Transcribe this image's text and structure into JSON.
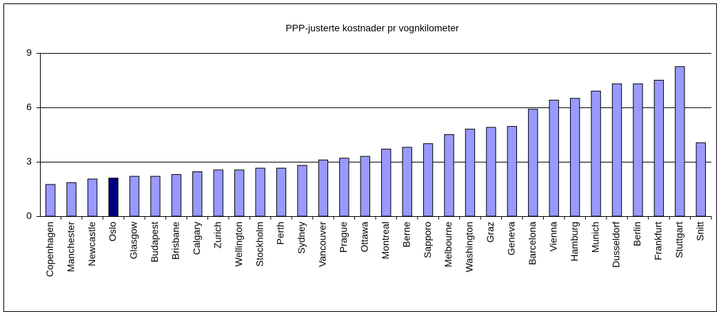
{
  "chart_data": {
    "type": "bar",
    "title": "PPP-justerte kostnader pr vognkilometer",
    "categories": [
      "Copenhagen",
      "Manchester",
      "Newcastle",
      "Oslo",
      "Glasgow",
      "Budapest",
      "Brisbane",
      "Calgary",
      "Zurich",
      "Wellington",
      "Stockholm",
      "Perth",
      "Sydney",
      "Vancouver",
      "Prague",
      "Ottawa",
      "Montreal",
      "Berne",
      "Sapporo",
      "Melbourne",
      "Washington",
      "Graz",
      "Geneva",
      "Barcelona",
      "Vienna",
      "Hamburg",
      "Munich",
      "Dusseldorf",
      "Berlin",
      "Frankfurt",
      "Stuttgart",
      "Snitt"
    ],
    "values": [
      1.75,
      1.85,
      2.05,
      2.1,
      2.2,
      2.2,
      2.3,
      2.45,
      2.55,
      2.55,
      2.65,
      2.65,
      2.8,
      3.1,
      3.2,
      3.3,
      3.7,
      3.8,
      4.0,
      4.5,
      4.8,
      4.9,
      4.95,
      5.9,
      6.4,
      6.5,
      6.9,
      7.3,
      7.3,
      7.5,
      8.25,
      4.05
    ],
    "colors": [
      "#9999ff",
      "#9999ff",
      "#9999ff",
      "#000080",
      "#9999ff",
      "#9999ff",
      "#9999ff",
      "#9999ff",
      "#9999ff",
      "#9999ff",
      "#9999ff",
      "#9999ff",
      "#9999ff",
      "#9999ff",
      "#9999ff",
      "#9999ff",
      "#9999ff",
      "#9999ff",
      "#9999ff",
      "#9999ff",
      "#9999ff",
      "#9999ff",
      "#9999ff",
      "#9999ff",
      "#9999ff",
      "#9999ff",
      "#9999ff",
      "#9999ff",
      "#9999ff",
      "#9999ff",
      "#9999ff",
      "#9999ff"
    ],
    "ylim": [
      0,
      9
    ],
    "yticks": [
      0,
      3,
      6,
      9
    ],
    "grid": true
  }
}
